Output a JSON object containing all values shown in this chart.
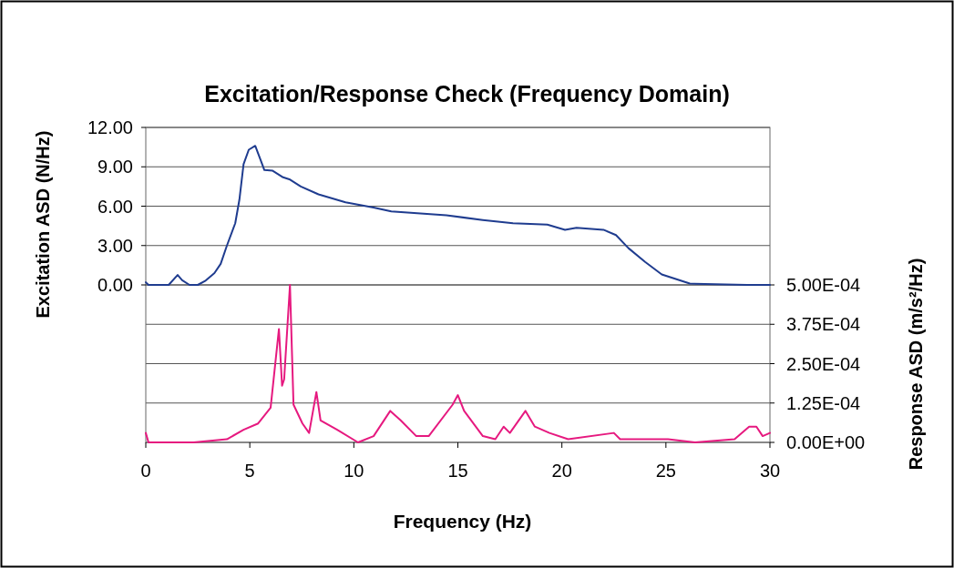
{
  "chart_data": {
    "type": "line",
    "title": "Excitation/Response Check (Frequency Domain)",
    "xlabel": "Frequency (Hz)",
    "ylabel": "Excitation ASD (N/Hz)",
    "y2label": "Response ASD (m/s²/Hz)",
    "xlim": [
      0,
      30
    ],
    "xticks": [
      0,
      5,
      10,
      15,
      20,
      25,
      30
    ],
    "ylim": [
      -12,
      12
    ],
    "yticks": [
      {
        "value": 0,
        "label": "0.00"
      },
      {
        "value": 3,
        "label": "3.00"
      },
      {
        "value": 6,
        "label": "6.00"
      },
      {
        "value": 9,
        "label": "9.00"
      },
      {
        "value": 12,
        "label": "12.00"
      }
    ],
    "y2lim": [
      0,
      0.001
    ],
    "y2ticks": [
      {
        "value": 0,
        "label": "0.00E+00"
      },
      {
        "value": 0.000125,
        "label": "1.25E-04"
      },
      {
        "value": 0.00025,
        "label": "2.50E-04"
      },
      {
        "value": 0.000375,
        "label": "3.75E-04"
      },
      {
        "value": 0.0005,
        "label": "5.00E-04"
      }
    ],
    "grid": "y",
    "marker": "none",
    "line_style": "solid",
    "series": [
      {
        "color": "#1f3c8f",
        "x": [
          0,
          0.13,
          1.1,
          1.53,
          1.75,
          2.1,
          2.5,
          2.85,
          3.3,
          3.6,
          3.9,
          4.3,
          4.5,
          4.7,
          4.95,
          5.26,
          5.5,
          5.7,
          6.1,
          6.6,
          6.9,
          7.45,
          8.3,
          9.6,
          10.95,
          11.8,
          14.45,
          16.2,
          17.65,
          19.3,
          20.15,
          20.7,
          22.0,
          22.6,
          23.2,
          24.0,
          24.8,
          26.15,
          28.9,
          30
        ],
        "values": [
          0.2,
          0,
          0,
          0.76,
          0.35,
          0,
          0,
          0.3,
          0.9,
          1.6,
          3.0,
          4.7,
          6.5,
          9.2,
          10.3,
          10.6,
          9.6,
          8.75,
          8.7,
          8.2,
          8.05,
          7.5,
          6.9,
          6.3,
          5.9,
          5.6,
          5.3,
          4.95,
          4.7,
          4.6,
          4.2,
          4.35,
          4.2,
          3.8,
          2.8,
          1.75,
          0.8,
          0.1,
          0,
          0
        ]
      },
      {
        "color": "#e6197f",
        "axis": "y2",
        "x": [
          0,
          0.13,
          2.3,
          3.9,
          4.7,
          5.4,
          6.0,
          6.4,
          6.55,
          6.65,
          6.93,
          7.1,
          7.53,
          7.85,
          8.2,
          8.4,
          9.2,
          10.2,
          10.95,
          11.75,
          12.25,
          13.0,
          13.6,
          14.75,
          15.0,
          15.3,
          16.2,
          16.8,
          17.2,
          17.5,
          18.25,
          18.7,
          19.4,
          20.3,
          22.5,
          22.8,
          25.1,
          26.4,
          28.3,
          29.0,
          29.35,
          29.65,
          30
        ],
        "values": [
          3e-05,
          0,
          0,
          1e-05,
          4e-05,
          6e-05,
          0.00011,
          0.00036,
          0.00018,
          0.0002,
          0.0005,
          0.00012,
          6e-05,
          3e-05,
          0.00016,
          7e-05,
          4e-05,
          0,
          2e-05,
          0.0001,
          7e-05,
          2e-05,
          2e-05,
          0.00012,
          0.00015,
          0.0001,
          2e-05,
          1e-05,
          5e-05,
          3e-05,
          0.0001,
          5e-05,
          3e-05,
          1e-05,
          3e-05,
          1e-05,
          1e-05,
          0,
          1e-05,
          5e-05,
          5e-05,
          2e-05,
          3e-05
        ]
      }
    ]
  }
}
